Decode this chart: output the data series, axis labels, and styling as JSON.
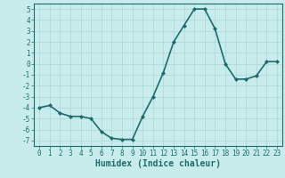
{
  "x": [
    0,
    1,
    2,
    3,
    4,
    5,
    6,
    7,
    8,
    9,
    10,
    11,
    12,
    13,
    14,
    15,
    16,
    17,
    18,
    19,
    20,
    21,
    22,
    23
  ],
  "y": [
    -4.0,
    -3.8,
    -4.5,
    -4.8,
    -4.8,
    -5.0,
    -6.2,
    -6.8,
    -6.9,
    -6.9,
    -4.8,
    -3.0,
    -0.8,
    2.0,
    3.5,
    5.0,
    5.0,
    3.2,
    0.0,
    -1.4,
    -1.4,
    -1.1,
    0.2,
    0.2
  ],
  "line_color": "#1e6b6b",
  "marker": "D",
  "marker_size": 2,
  "bg_color": "#c8ecec",
  "grid_color": "#aed4d4",
  "xlabel": "Humidex (Indice chaleur)",
  "xlim": [
    -0.5,
    23.5
  ],
  "ylim": [
    -7.5,
    5.5
  ],
  "yticks": [
    -7,
    -6,
    -5,
    -4,
    -3,
    -2,
    -1,
    0,
    1,
    2,
    3,
    4,
    5
  ],
  "xticks": [
    0,
    1,
    2,
    3,
    4,
    5,
    6,
    7,
    8,
    9,
    10,
    11,
    12,
    13,
    14,
    15,
    16,
    17,
    18,
    19,
    20,
    21,
    22,
    23
  ],
  "font_color": "#1e6b6b",
  "line_width": 1.2,
  "tick_fontsize": 5.5,
  "xlabel_fontsize": 7.0
}
